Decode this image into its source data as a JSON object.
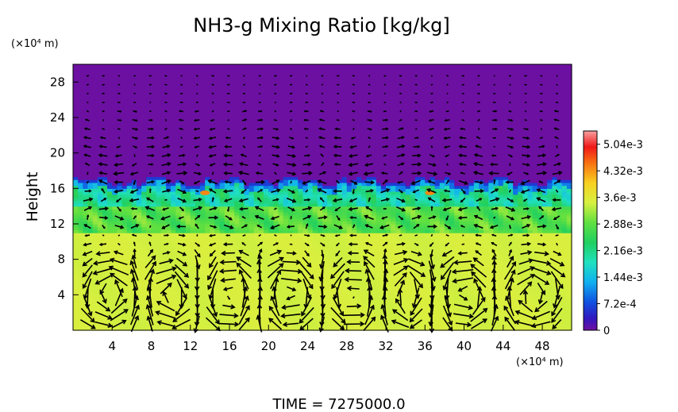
{
  "chart_data": {
    "type": "heatmap",
    "title": "NH3-g Mixing Ratio [kg/kg]",
    "ylabel": "Height",
    "y_unit": "(×10⁴ m)",
    "x_unit": "(×10⁴ m)",
    "footer": "TIME  =  7275000.0",
    "xlim": [
      0,
      51
    ],
    "ylim": [
      0,
      30
    ],
    "x_ticks": [
      "4",
      "8",
      "12",
      "16",
      "20",
      "24",
      "28",
      "32",
      "36",
      "40",
      "44",
      "48"
    ],
    "y_ticks": [
      "4",
      "8",
      "12",
      "16",
      "20",
      "24",
      "28"
    ],
    "colorbar": {
      "range": [
        0,
        0.0054
      ],
      "tick_labels": [
        "0",
        "7.2e-4",
        "1.44e-3",
        "2.16e-3",
        "2.88e-3",
        "3.6e-3",
        "4.32e-3",
        "5.04e-3"
      ],
      "tick_values": [
        0,
        0.00072,
        0.00144,
        0.00216,
        0.00288,
        0.0036,
        0.00432,
        0.00504
      ]
    },
    "field": {
      "description_levels": [
        {
          "height_range": [
            0,
            11
          ],
          "value": 0.0034
        },
        {
          "height_range": [
            11,
            14
          ],
          "value": 0.0029
        },
        {
          "height_range": [
            14,
            16.5
          ],
          "value": 0.0022
        },
        {
          "height_range": [
            16.5,
            30
          ],
          "value": 0.0
        }
      ],
      "interface_height": 16.5
    },
    "vortices": [
      {
        "x": 4,
        "y": 4
      },
      {
        "x": 10,
        "y": 4
      },
      {
        "x": 16,
        "y": 4
      },
      {
        "x": 22,
        "y": 4
      },
      {
        "x": 29,
        "y": 4
      },
      {
        "x": 34,
        "y": 4
      },
      {
        "x": 40,
        "y": 4
      },
      {
        "x": 47,
        "y": 4
      }
    ]
  }
}
